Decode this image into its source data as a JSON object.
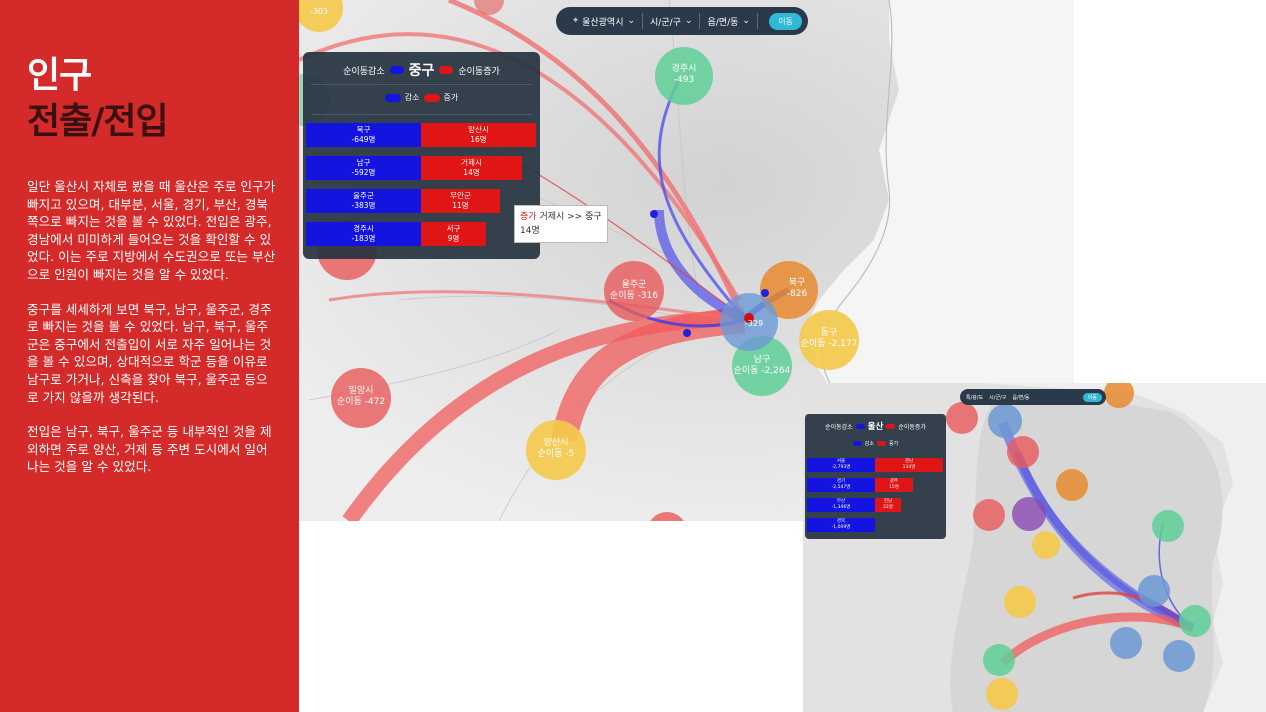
{
  "slide": {
    "title_line1": "인구",
    "title_line2": "전출/전입",
    "paragraphs": [
      "일단 울산시 자체로 봤을 때 울산은 주로 인구가 빠지고 있으며, 대부분, 서울, 경기, 부산, 경북쪽으로 빠지는 것을 볼 수 있었다. 전입은 광주, 경남에서 미미하게 들어오는 것을 확인할 수 있었다. 이는 주로 지방에서 수도권으로 또는 부산으로 인원이 빠지는 것을 알 수 있었다.",
      "중구를 세세하게 보면 북구, 남구, 울주군, 경주로 빠지는 것을 볼 수 있었다. 남구, 북구, 울주군은 중구에서 전출입이 서로 자주 일어나는 것을 볼 수 있으며, 상대적으로 학군 등을 이유로 남구로 가거나, 신축을 찾아 북구, 울주군 등으로 가지 않을까 생각된다.",
      "전입은 남구, 북구, 울주군 등 내부적인 것을 제외하면 주로 양산, 거제 등 주변 도시에서 일어나는 것을 알 수 있었다."
    ]
  },
  "main_map": {
    "selector": {
      "city": "울산광역시",
      "district": "시/군/구",
      "town": "읍/면/동",
      "move_button": "이동"
    },
    "legend": {
      "decrease_label": "순이동감소",
      "center": "중구",
      "increase_label": "순이동증가",
      "sub_decrease": "감소",
      "sub_increase": "증가",
      "decrease_bars": [
        {
          "name": "북구",
          "value": "-649명"
        },
        {
          "name": "남구",
          "value": "-592명"
        },
        {
          "name": "울주군",
          "value": "-383명"
        },
        {
          "name": "경주시",
          "value": "-183명"
        }
      ],
      "increase_bars": [
        {
          "name": "양산시",
          "value": "16명"
        },
        {
          "name": "거제시",
          "value": "14명"
        },
        {
          "name": "무안군",
          "value": "11명"
        },
        {
          "name": "서구",
          "value": "9명"
        }
      ]
    },
    "tooltip": {
      "tag": "증가",
      "route": "거제시 >> 중구",
      "value": "14명"
    },
    "circles": [
      {
        "name": "경주시",
        "value": "-493"
      },
      {
        "name": "울주군",
        "value": "순이동 -316"
      },
      {
        "name": "북구",
        "value": "-826"
      },
      {
        "name": "동구",
        "value": "순이동 -2,177"
      },
      {
        "name": "남구",
        "value": "순이동 -2,264"
      },
      {
        "name": "밀양시",
        "value": "순이동 -472"
      },
      {
        "name": "양산시",
        "value": "순이동 -5"
      },
      {
        "name": "중구",
        "value": "-329"
      },
      {
        "name": "",
        "value": "-303"
      }
    ],
    "colors": {
      "blue": "#1414e0",
      "red": "#e01616",
      "panel": "#2b3a4a",
      "accent": "#2fb9d6"
    }
  },
  "inset_map": {
    "selector": {
      "city": "특/광/도",
      "district": "시/군/구",
      "town": "읍/면/동",
      "move_button": "이동"
    },
    "legend": {
      "decrease_label": "순이동감소",
      "center": "울산",
      "increase_label": "순이동증가",
      "sub_decrease": "감소",
      "sub_increase": "증가",
      "decrease_bars": [
        {
          "name": "서울",
          "value": "-2,793명"
        },
        {
          "name": "경기",
          "value": "-2,547명"
        },
        {
          "name": "부산",
          "value": "-1,346명"
        },
        {
          "name": "경북",
          "value": "-1,009명"
        }
      ],
      "increase_bars": [
        {
          "name": "경남",
          "value": "134명"
        },
        {
          "name": "광주",
          "value": "15명"
        },
        {
          "name": "전남",
          "value": "22명"
        }
      ]
    }
  }
}
